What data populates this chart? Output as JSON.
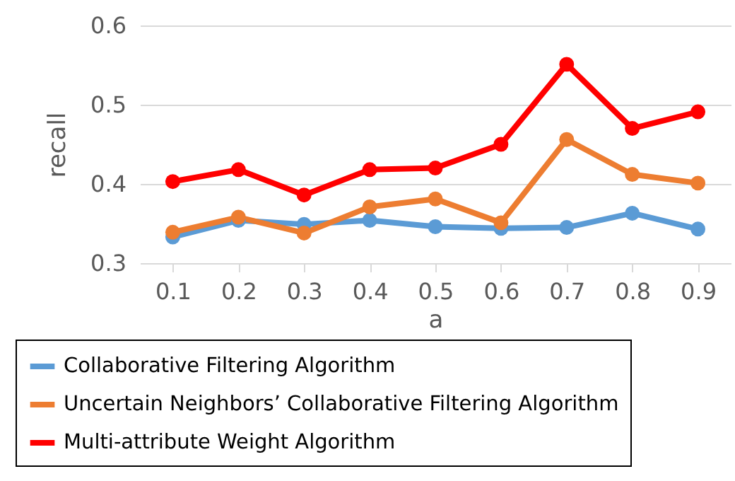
{
  "chart_data": {
    "type": "line",
    "xlabel": "a",
    "ylabel": "recall",
    "categories": [
      "0.1",
      "0.2",
      "0.3",
      "0.4",
      "0.5",
      "0.6",
      "0.7",
      "0.8",
      "0.9"
    ],
    "series": [
      {
        "name": "Collaborative Filtering Algorithm",
        "color": "#5b9bd5",
        "values": [
          0.333,
          0.354,
          0.349,
          0.354,
          0.346,
          0.344,
          0.345,
          0.363,
          0.343
        ]
      },
      {
        "name": "Uncertain Neighbors’ Collaborative Filtering Algorithm",
        "color": "#ed7d31",
        "values": [
          0.339,
          0.358,
          0.338,
          0.371,
          0.381,
          0.351,
          0.456,
          0.412,
          0.401
        ]
      },
      {
        "name": "Multi-attribute Weight Algorithm",
        "color": "#ff0000",
        "values": [
          0.403,
          0.418,
          0.386,
          0.418,
          0.42,
          0.45,
          0.551,
          0.47,
          0.491
        ]
      }
    ],
    "ylim": [
      0.3,
      0.6
    ],
    "yticks": [
      0.3,
      0.4,
      0.5,
      0.6
    ],
    "grid": "y",
    "legend": "bottom",
    "marker": "circle",
    "line_style": "solid"
  }
}
